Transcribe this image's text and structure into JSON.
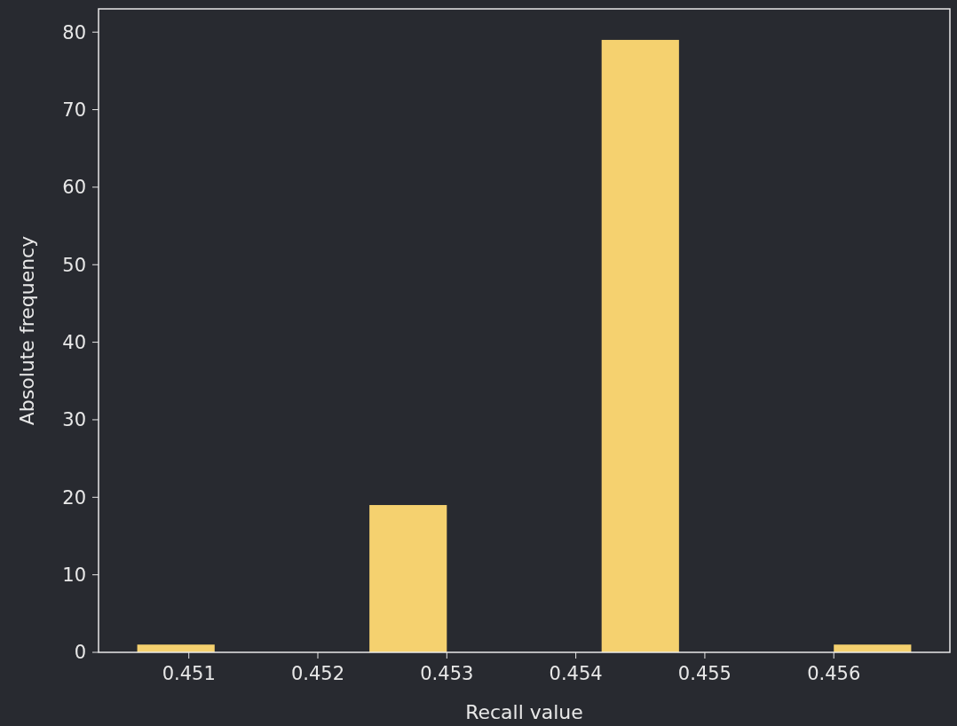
{
  "chart_data": {
    "type": "histogram",
    "xlabel": "Recall value",
    "ylabel": "Absolute frequency",
    "bins": [
      0.4506,
      0.4512,
      0.4518,
      0.4524,
      0.453,
      0.4536,
      0.4542,
      0.4548,
      0.4554,
      0.456,
      0.4566
    ],
    "values": [
      1,
      0,
      0,
      19,
      0,
      0,
      79,
      0,
      0,
      1
    ],
    "color": "#f5d16f",
    "xlim": [
      0.4503,
      0.4569
    ],
    "xticks": [
      0.451,
      0.452,
      0.453,
      0.454,
      0.455,
      0.456
    ],
    "ylim": [
      0,
      83
    ],
    "yticks": [
      0,
      10,
      20,
      30,
      40,
      50,
      60,
      70,
      80
    ],
    "grid": false
  }
}
